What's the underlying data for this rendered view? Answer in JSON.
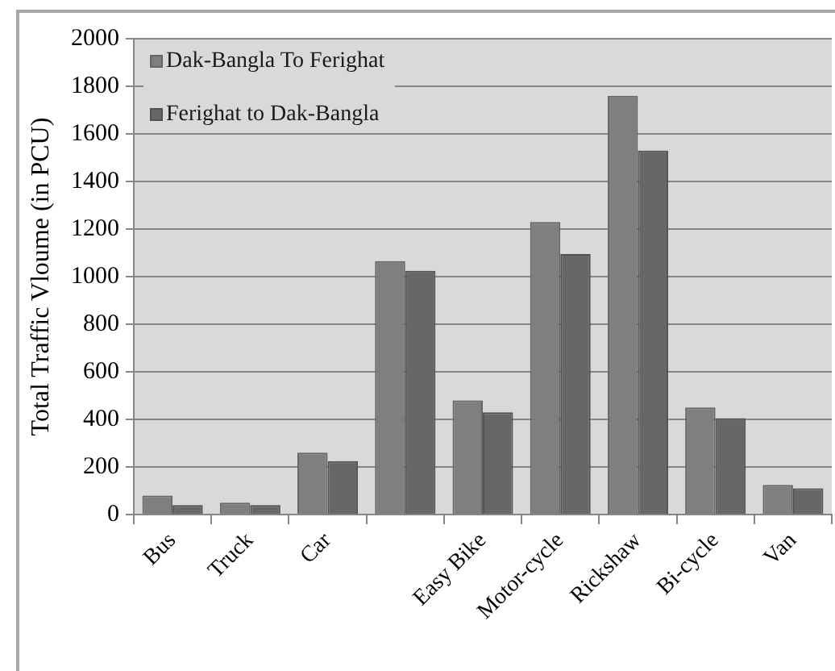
{
  "chart_data": {
    "type": "bar",
    "ylabel": "Total Traffic Vloume (in PCU)",
    "categories": [
      "Bus",
      "Truck",
      "Car",
      null,
      "Easy Bike",
      "Motor-cycle",
      "Rickshaw",
      "Bi-cycle",
      "Van"
    ],
    "series": [
      {
        "name": "Dak-Bangla To Ferighat",
        "color": "#7f7f7f",
        "values": [
          80,
          50,
          260,
          1065,
          480,
          1230,
          1760,
          450,
          125
        ]
      },
      {
        "name": "Ferighat to Dak-Bangla",
        "color": "#676767",
        "values": [
          40,
          40,
          225,
          1025,
          430,
          1095,
          1530,
          405,
          110
        ]
      }
    ],
    "ylim": [
      0,
      2000
    ],
    "yticks": [
      0,
      200,
      400,
      600,
      800,
      1000,
      1200,
      1400,
      1600,
      1800,
      2000
    ],
    "grid": "y",
    "legend": "top left"
  }
}
